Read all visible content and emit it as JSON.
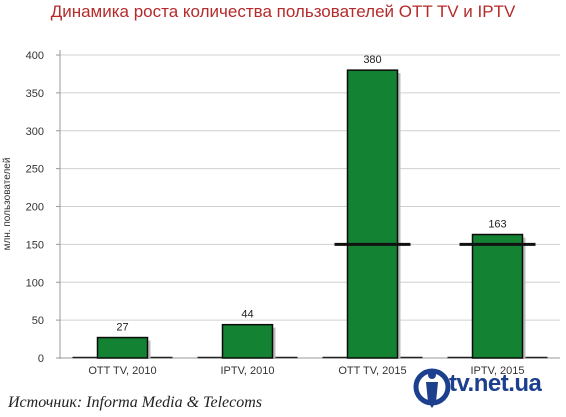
{
  "chart_data": {
    "type": "bar",
    "title": "Динамика роста количества пользователей OTT TV и IPTV",
    "ylabel": "млн. пользователей",
    "xlabel": "",
    "categories": [
      "OTT TV, 2010",
      "IPTV, 2010",
      "OTT TV, 2015",
      "IPTV, 2015"
    ],
    "values": [
      27,
      44,
      380,
      163
    ],
    "data_labels": [
      "27",
      "44",
      "380",
      "163"
    ],
    "ylim": [
      0,
      400
    ],
    "yticks": [
      0,
      50,
      100,
      150,
      200,
      250,
      300,
      350,
      400
    ],
    "bar_color": "#138233",
    "grid": true,
    "legend": "none"
  },
  "source": "Источник: Informa Media & Telecoms",
  "logo": {
    "text": "tv.net.ua",
    "icon": "person-circle-logo-icon",
    "color": "#1c3f8e"
  }
}
